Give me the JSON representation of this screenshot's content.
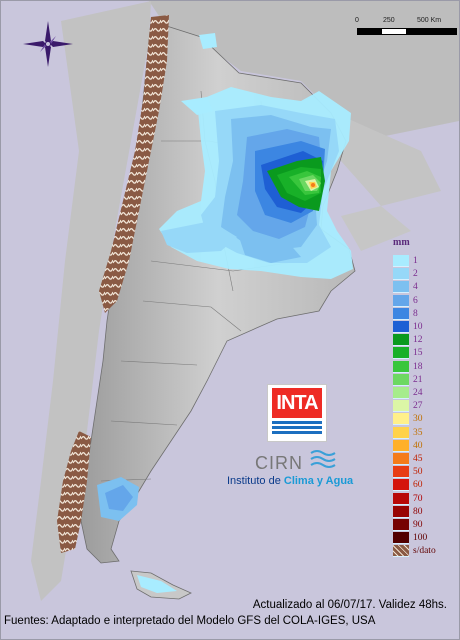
{
  "scale_bar": {
    "ticks": [
      "0",
      "250",
      "500 Km"
    ]
  },
  "legend": {
    "unit": "mm",
    "items": [
      {
        "label": "1",
        "color": "#a8ecff",
        "text_color": "#7b2c8e"
      },
      {
        "label": "2",
        "color": "#96d8f8",
        "text_color": "#7b2c8e"
      },
      {
        "label": "4",
        "color": "#7cc0f0",
        "text_color": "#7b2c8e"
      },
      {
        "label": "6",
        "color": "#64a6ea",
        "text_color": "#7b2c8e"
      },
      {
        "label": "8",
        "color": "#3c86e2",
        "text_color": "#7b2c8e"
      },
      {
        "label": "10",
        "color": "#1e5fd4",
        "text_color": "#7b2c8e"
      },
      {
        "label": "12",
        "color": "#0a9a1e",
        "text_color": "#7b2c8e"
      },
      {
        "label": "15",
        "color": "#18b028",
        "text_color": "#7b2c8e"
      },
      {
        "label": "18",
        "color": "#38c63c",
        "text_color": "#7b2c8e"
      },
      {
        "label": "21",
        "color": "#6cd862",
        "text_color": "#7b2c8e"
      },
      {
        "label": "24",
        "color": "#a6ec8c",
        "text_color": "#7b2c8e"
      },
      {
        "label": "27",
        "color": "#dcf6a6",
        "text_color": "#7b2c8e"
      },
      {
        "label": "30",
        "color": "#fff08a",
        "text_color": "#c07000"
      },
      {
        "label": "35",
        "color": "#ffd24a",
        "text_color": "#c07000"
      },
      {
        "label": "40",
        "color": "#ffb028",
        "text_color": "#c07000"
      },
      {
        "label": "45",
        "color": "#f47c1a",
        "text_color": "#c02000"
      },
      {
        "label": "50",
        "color": "#e83c14",
        "text_color": "#c02000"
      },
      {
        "label": "60",
        "color": "#d4140c",
        "text_color": "#c02000"
      },
      {
        "label": "70",
        "color": "#b80808",
        "text_color": "#b00000"
      },
      {
        "label": "80",
        "color": "#980404",
        "text_color": "#900000"
      },
      {
        "label": "90",
        "color": "#760202",
        "text_color": "#800000"
      },
      {
        "label": "100",
        "color": "#520000",
        "text_color": "#600000"
      },
      {
        "label": "s/dato",
        "color": "#8a5a44",
        "text_color": "#600000"
      }
    ]
  },
  "branding": {
    "inta": "INTA",
    "cirn": "CIRN",
    "instituto_prefix": "Instituto de ",
    "instituto_highlight": "Clima y Agua"
  },
  "footer": {
    "updated": "Actualizado al 06/07/17. Validez 48hs.",
    "sources": "Fuentes: Adaptado e interpretado del Modelo GFS del COLA-IGES, USA"
  }
}
